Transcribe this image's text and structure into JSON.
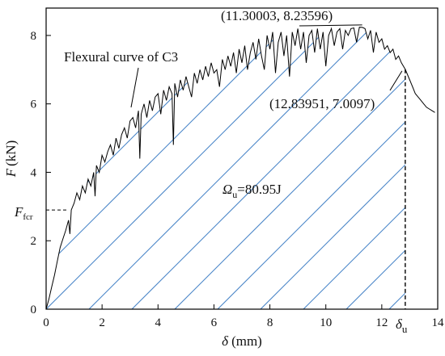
{
  "chart_data": {
    "type": "line",
    "x": [
      0,
      0.1,
      0.2,
      0.3,
      0.4,
      0.5,
      0.6,
      0.7,
      0.8,
      0.85,
      0.9,
      1.0,
      1.1,
      1.2,
      1.3,
      1.4,
      1.5,
      1.6,
      1.7,
      1.75,
      1.8,
      1.9,
      2.0,
      2.1,
      2.2,
      2.3,
      2.4,
      2.5,
      2.6,
      2.7,
      2.8,
      2.9,
      3.0,
      3.1,
      3.2,
      3.3,
      3.35,
      3.4,
      3.5,
      3.6,
      3.7,
      3.8,
      3.9,
      4.0,
      4.1,
      4.2,
      4.3,
      4.4,
      4.5,
      4.55,
      4.6,
      4.7,
      4.8,
      4.9,
      5.0,
      5.1,
      5.2,
      5.3,
      5.4,
      5.5,
      5.6,
      5.7,
      5.8,
      5.9,
      6.0,
      6.1,
      6.2,
      6.3,
      6.4,
      6.5,
      6.6,
      6.7,
      6.8,
      6.9,
      7.0,
      7.1,
      7.2,
      7.3,
      7.4,
      7.5,
      7.6,
      7.7,
      7.8,
      7.9,
      8.0,
      8.1,
      8.2,
      8.3,
      8.4,
      8.5,
      8.6,
      8.7,
      8.8,
      8.9,
      9.0,
      9.1,
      9.2,
      9.3,
      9.4,
      9.5,
      9.6,
      9.7,
      9.8,
      9.9,
      10.0,
      10.1,
      10.2,
      10.3,
      10.4,
      10.5,
      10.6,
      10.7,
      10.8,
      10.9,
      11.0,
      11.1,
      11.2,
      11.3,
      11.4,
      11.5,
      11.6,
      11.7,
      11.8,
      11.9,
      12.0,
      12.1,
      12.2,
      12.3,
      12.4,
      12.5,
      12.6,
      12.7,
      12.84,
      13.0,
      13.1,
      13.2,
      13.3,
      13.4,
      13.5,
      13.6,
      13.7,
      13.8,
      13.9
    ],
    "y": [
      0,
      0.3,
      0.65,
      1.0,
      1.4,
      1.8,
      2.05,
      2.3,
      2.6,
      2.2,
      2.9,
      3.1,
      3.4,
      3.2,
      3.6,
      3.4,
      3.8,
      3.6,
      4.0,
      3.3,
      4.2,
      4.0,
      4.5,
      4.3,
      4.6,
      4.8,
      4.5,
      5.0,
      4.7,
      5.1,
      5.3,
      5.0,
      5.5,
      5.6,
      5.3,
      5.8,
      4.4,
      5.7,
      6.0,
      5.6,
      6.1,
      5.8,
      6.2,
      6.3,
      5.7,
      6.4,
      6.1,
      6.5,
      6.3,
      4.8,
      6.6,
      6.2,
      6.7,
      6.4,
      6.8,
      6.5,
      6.2,
      6.9,
      6.6,
      7.0,
      6.7,
      7.1,
      6.8,
      7.2,
      6.9,
      7.0,
      6.5,
      7.3,
      7.0,
      7.4,
      7.1,
      7.5,
      6.9,
      7.6,
      7.2,
      7.7,
      7.0,
      7.5,
      7.8,
      7.3,
      7.9,
      7.4,
      7.0,
      8.0,
      7.6,
      8.1,
      6.9,
      7.8,
      8.1,
      7.4,
      8.0,
      6.8,
      8.1,
      7.7,
      8.2,
      7.6,
      8.1,
      7.2,
      8.0,
      8.15,
      7.5,
      8.2,
      7.6,
      8.1,
      7.1,
      8.0,
      8.2,
      7.7,
      8.1,
      8.2,
      7.6,
      8.15,
      8.0,
      8.2,
      8.22,
      7.8,
      8.24,
      8.236,
      8.2,
      7.9,
      8.15,
      7.5,
      8.1,
      7.8,
      7.9,
      7.6,
      7.7,
      7.5,
      7.6,
      7.3,
      7.4,
      7.2,
      7.0097,
      6.7,
      6.5,
      6.3,
      6.2,
      6.1,
      6.0,
      5.9,
      5.85,
      5.8,
      5.75
    ],
    "xlabel_symbol": "δ",
    "xlabel_unit": "(mm)",
    "ylabel_symbol": "F",
    "ylabel_unit": "(kN)",
    "xlim": [
      0,
      14
    ],
    "ylim": [
      0,
      8.8
    ],
    "xticks": [
      0,
      2,
      4,
      6,
      8,
      10,
      12,
      14
    ],
    "yticks": [
      0,
      2,
      4,
      6,
      8
    ],
    "grid": false,
    "line_color": "#000000",
    "hatch_color": "#4a86c8",
    "curve_label": "Flexural curve of C3",
    "peak_label": "(11.30003, 8.23596)",
    "peak_point": [
      11.30003,
      8.23596
    ],
    "ultimate_label": "(12.83951, 7.0097)",
    "ultimate_point": [
      12.83951,
      7.0097
    ],
    "area_label_symbol": "Ω",
    "area_label_sub": "u",
    "area_label_value": "=80.95J",
    "fcr_symbol": "F",
    "fcr_sub": "fcr",
    "fcr_value": 2.9,
    "delta_u_symbol": "δ",
    "delta_u_sub": "u"
  }
}
